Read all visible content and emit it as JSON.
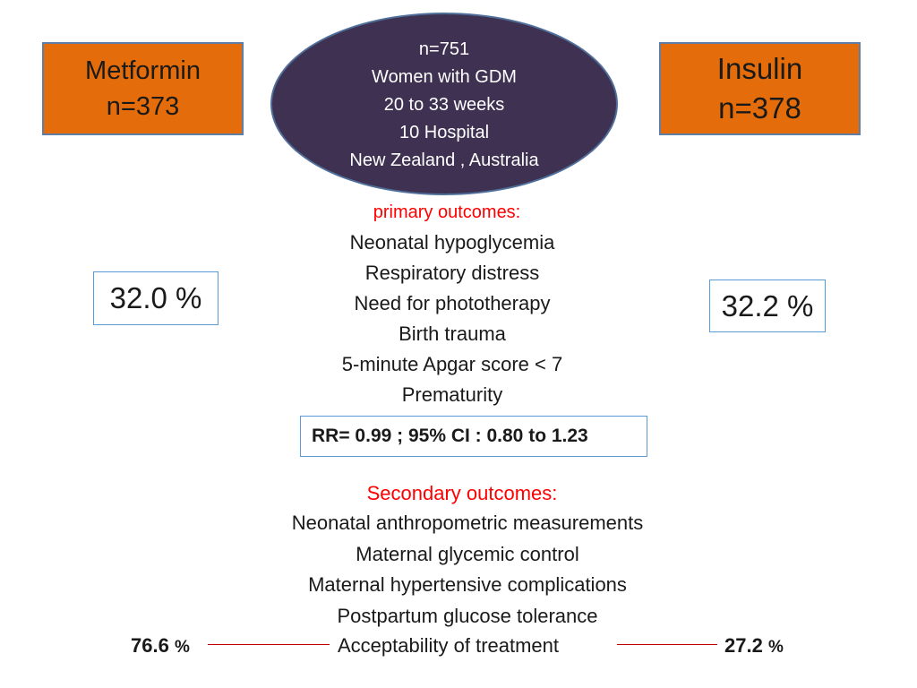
{
  "population": {
    "n": "n=751",
    "line2": "Women with GDM",
    "line3": "20 to 33 weeks",
    "line4": "10  Hospital",
    "line5": "New Zealand , Australia"
  },
  "arms": {
    "metformin": {
      "name": "Metformin",
      "n": "n=373"
    },
    "insulin": {
      "name": "Insulin",
      "n": "n=378"
    }
  },
  "primary": {
    "title": "primary outcomes:",
    "items": [
      "Neonatal hypoglycemia",
      "Respiratory distress",
      "Need for phototherapy",
      "Birth trauma",
      "5-minute Apgar score < 7",
      "Prematurity"
    ],
    "metformin_rate": "32.0  %",
    "insulin_rate": "32.2 %",
    "rr_text": "RR= 0.99 ; 95% CI : 0.80 to 1.23"
  },
  "secondary": {
    "title": "Secondary outcomes:",
    "items": [
      "Neonatal anthropometric measurements",
      "Maternal glycemic control",
      "Maternal hypertensive complications",
      "Postpartum glucose tolerance"
    ],
    "acceptability": {
      "label": "Acceptability of treatment",
      "metformin_value": "76.6",
      "insulin_value": "27.2",
      "unit": "%"
    }
  },
  "colors": {
    "arm_box_fill": "#e46c0a",
    "ellipse_fill": "#3f3151",
    "title_red": "#ff0000",
    "connector_red": "#c00000",
    "box_border_blue": "#5b9bd5"
  }
}
